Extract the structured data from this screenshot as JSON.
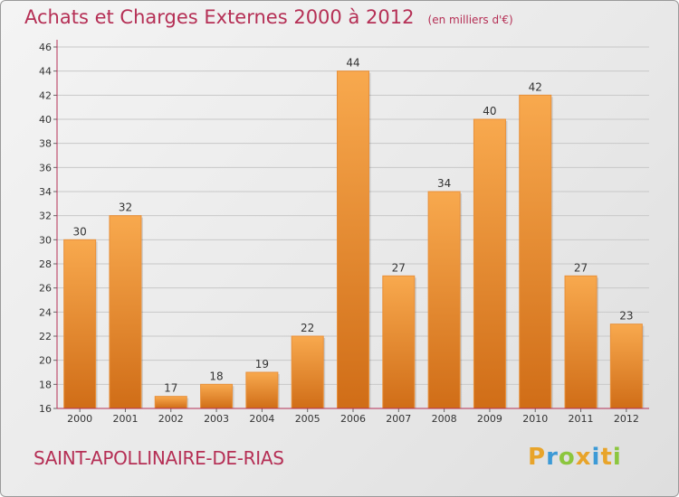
{
  "title": "Achats et Charges Externes 2000 à 2012",
  "subtitle": "(en milliers d'€)",
  "commune": "SAINT-APOLLINAIRE-DE-RIAS",
  "logo": {
    "text": "Proxiti",
    "letters": [
      {
        "ch": "P",
        "color": "#e8a42a"
      },
      {
        "ch": "r",
        "color": "#3c9ad6"
      },
      {
        "ch": "o",
        "color": "#8cc63e"
      },
      {
        "ch": "x",
        "color": "#e8a42a"
      },
      {
        "ch": "i",
        "color": "#3c9ad6"
      },
      {
        "ch": "t",
        "color": "#e8a42a"
      },
      {
        "ch": "i",
        "color": "#8cc63e"
      }
    ]
  },
  "colors": {
    "bar_light": "#f8a94e",
    "bar_dark": "#d06d17",
    "title": "#b52f55",
    "axis": "#b52f55",
    "grid": "#c8c8c8"
  },
  "chart_data": {
    "type": "bar",
    "categories": [
      "2000",
      "2001",
      "2002",
      "2003",
      "2004",
      "2005",
      "2006",
      "2007",
      "2008",
      "2009",
      "2010",
      "2011",
      "2012"
    ],
    "values": [
      30,
      32,
      17,
      18,
      19,
      22,
      44,
      27,
      34,
      40,
      42,
      27,
      23
    ],
    "ylim": [
      16,
      46
    ],
    "yticks": [
      16,
      18,
      20,
      22,
      24,
      26,
      28,
      30,
      32,
      34,
      36,
      38,
      40,
      42,
      44,
      46
    ],
    "grid": true,
    "data_labels": true
  }
}
